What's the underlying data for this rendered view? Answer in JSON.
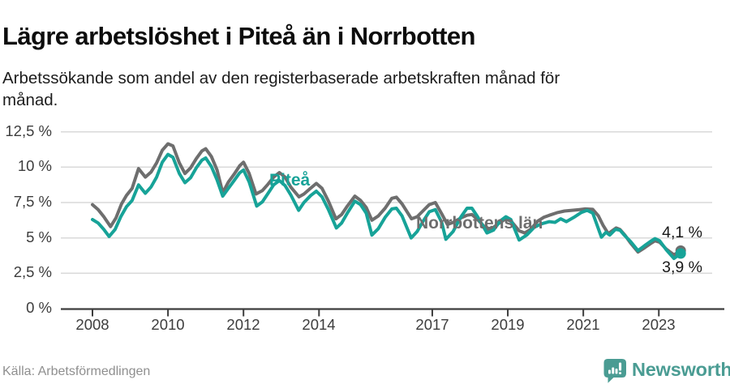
{
  "title": "Lägre arbetslöshet i Piteå än i Norrbotten",
  "subtitle": "Arbetssökande som andel av den registerbaserade arbetskraften månad för månad.",
  "source": "Källa: Arbetsförmedlingen",
  "brand": {
    "name": "Newsworthy",
    "color": "#4a9c93"
  },
  "chart_data": {
    "type": "line",
    "unit": "%",
    "grid": true,
    "x_axis": {
      "ticks": [
        2008,
        2010,
        2012,
        2014,
        2017,
        2019,
        2021,
        2023
      ],
      "range": [
        2008.0,
        2023.75
      ]
    },
    "y_axis": {
      "ticks": [
        0,
        2.5,
        5,
        7.5,
        10,
        12.5
      ],
      "tick_labels": [
        "0 %",
        "2,5 %",
        "5 %",
        "7,5 %",
        "10 %",
        "12,5 %"
      ],
      "range": [
        0,
        12.5
      ]
    },
    "series": [
      {
        "name": "Norrbottens län",
        "color": "#6e6e6e",
        "end_label": "4,1 %",
        "end_value": 4.1,
        "points": [
          [
            2008.0,
            7.35
          ],
          [
            2008.15,
            7.0
          ],
          [
            2008.3,
            6.5
          ],
          [
            2008.48,
            5.8
          ],
          [
            2008.62,
            6.4
          ],
          [
            2008.77,
            7.4
          ],
          [
            2008.9,
            8.0
          ],
          [
            2009.05,
            8.5
          ],
          [
            2009.22,
            9.9
          ],
          [
            2009.4,
            9.3
          ],
          [
            2009.55,
            9.65
          ],
          [
            2009.7,
            10.3
          ],
          [
            2009.85,
            11.2
          ],
          [
            2010.0,
            11.65
          ],
          [
            2010.13,
            11.5
          ],
          [
            2010.3,
            10.3
          ],
          [
            2010.45,
            9.55
          ],
          [
            2010.6,
            9.95
          ],
          [
            2010.75,
            10.6
          ],
          [
            2010.9,
            11.15
          ],
          [
            2011.0,
            11.3
          ],
          [
            2011.15,
            10.75
          ],
          [
            2011.3,
            9.8
          ],
          [
            2011.45,
            8.2
          ],
          [
            2011.6,
            8.95
          ],
          [
            2011.75,
            9.5
          ],
          [
            2011.9,
            10.1
          ],
          [
            2012.0,
            10.35
          ],
          [
            2012.15,
            9.55
          ],
          [
            2012.33,
            8.1
          ],
          [
            2012.5,
            8.35
          ],
          [
            2012.65,
            8.8
          ],
          [
            2012.8,
            9.3
          ],
          [
            2012.95,
            9.62
          ],
          [
            2013.1,
            9.3
          ],
          [
            2013.25,
            8.6
          ],
          [
            2013.47,
            7.9
          ],
          [
            2013.6,
            8.1
          ],
          [
            2013.75,
            8.45
          ],
          [
            2013.93,
            8.85
          ],
          [
            2014.08,
            8.5
          ],
          [
            2014.25,
            7.6
          ],
          [
            2014.45,
            6.35
          ],
          [
            2014.6,
            6.65
          ],
          [
            2014.75,
            7.25
          ],
          [
            2014.95,
            7.95
          ],
          [
            2015.1,
            7.65
          ],
          [
            2015.25,
            7.15
          ],
          [
            2015.4,
            6.25
          ],
          [
            2015.57,
            6.55
          ],
          [
            2015.75,
            7.1
          ],
          [
            2015.93,
            7.8
          ],
          [
            2016.05,
            7.88
          ],
          [
            2016.2,
            7.4
          ],
          [
            2016.45,
            6.35
          ],
          [
            2016.6,
            6.5
          ],
          [
            2016.75,
            6.9
          ],
          [
            2016.92,
            7.35
          ],
          [
            2017.08,
            7.5
          ],
          [
            2017.25,
            6.7
          ],
          [
            2017.4,
            5.95
          ],
          [
            2017.55,
            6.1
          ],
          [
            2017.75,
            6.4
          ],
          [
            2017.92,
            6.6
          ],
          [
            2018.05,
            6.65
          ],
          [
            2018.2,
            6.3
          ],
          [
            2018.45,
            5.6
          ],
          [
            2018.62,
            5.75
          ],
          [
            2018.8,
            6.1
          ],
          [
            2018.95,
            6.35
          ],
          [
            2019.1,
            6.15
          ],
          [
            2019.3,
            5.5
          ],
          [
            2019.45,
            5.35
          ],
          [
            2019.6,
            5.6
          ],
          [
            2019.8,
            6.2
          ],
          [
            2019.95,
            6.45
          ],
          [
            2020.1,
            6.6
          ],
          [
            2020.3,
            6.78
          ],
          [
            2020.5,
            6.9
          ],
          [
            2020.7,
            6.95
          ],
          [
            2020.9,
            7.0
          ],
          [
            2021.05,
            7.05
          ],
          [
            2021.25,
            7.02
          ],
          [
            2021.4,
            6.55
          ],
          [
            2021.52,
            5.9
          ],
          [
            2021.66,
            5.3
          ],
          [
            2021.87,
            5.7
          ],
          [
            2021.97,
            5.6
          ],
          [
            2022.1,
            5.2
          ],
          [
            2022.25,
            4.65
          ],
          [
            2022.45,
            4.0
          ],
          [
            2022.62,
            4.3
          ],
          [
            2022.78,
            4.6
          ],
          [
            2022.9,
            4.8
          ],
          [
            2023.02,
            4.7
          ],
          [
            2023.2,
            4.2
          ],
          [
            2023.4,
            3.8
          ],
          [
            2023.58,
            4.1
          ]
        ]
      },
      {
        "name": "Piteå",
        "color": "#17a398",
        "end_label": "3,9 %",
        "end_value": 3.9,
        "points": [
          [
            2008.0,
            6.3
          ],
          [
            2008.15,
            6.05
          ],
          [
            2008.3,
            5.6
          ],
          [
            2008.44,
            5.1
          ],
          [
            2008.6,
            5.6
          ],
          [
            2008.75,
            6.5
          ],
          [
            2008.9,
            7.2
          ],
          [
            2009.05,
            7.65
          ],
          [
            2009.22,
            8.75
          ],
          [
            2009.4,
            8.15
          ],
          [
            2009.55,
            8.6
          ],
          [
            2009.7,
            9.3
          ],
          [
            2009.85,
            10.35
          ],
          [
            2010.0,
            10.9
          ],
          [
            2010.13,
            10.7
          ],
          [
            2010.3,
            9.55
          ],
          [
            2010.45,
            8.9
          ],
          [
            2010.6,
            9.25
          ],
          [
            2010.75,
            9.95
          ],
          [
            2010.9,
            10.5
          ],
          [
            2011.0,
            10.65
          ],
          [
            2011.15,
            10.05
          ],
          [
            2011.3,
            9.1
          ],
          [
            2011.45,
            7.95
          ],
          [
            2011.6,
            8.5
          ],
          [
            2011.75,
            9.05
          ],
          [
            2011.9,
            9.6
          ],
          [
            2012.0,
            9.8
          ],
          [
            2012.15,
            8.95
          ],
          [
            2012.35,
            7.25
          ],
          [
            2012.5,
            7.55
          ],
          [
            2012.65,
            8.15
          ],
          [
            2012.8,
            8.75
          ],
          [
            2012.95,
            9.05
          ],
          [
            2013.1,
            8.7
          ],
          [
            2013.25,
            8.05
          ],
          [
            2013.46,
            6.95
          ],
          [
            2013.6,
            7.5
          ],
          [
            2013.78,
            8.0
          ],
          [
            2013.93,
            8.3
          ],
          [
            2014.08,
            7.9
          ],
          [
            2014.25,
            7.0
          ],
          [
            2014.46,
            5.7
          ],
          [
            2014.6,
            6.05
          ],
          [
            2014.75,
            6.75
          ],
          [
            2014.95,
            7.6
          ],
          [
            2015.1,
            7.35
          ],
          [
            2015.25,
            6.75
          ],
          [
            2015.4,
            5.2
          ],
          [
            2015.57,
            5.65
          ],
          [
            2015.75,
            6.45
          ],
          [
            2015.93,
            7.05
          ],
          [
            2016.05,
            7.1
          ],
          [
            2016.2,
            6.55
          ],
          [
            2016.44,
            5.0
          ],
          [
            2016.6,
            5.45
          ],
          [
            2016.75,
            6.15
          ],
          [
            2016.92,
            6.85
          ],
          [
            2017.08,
            7.0
          ],
          [
            2017.25,
            6.1
          ],
          [
            2017.36,
            4.9
          ],
          [
            2017.55,
            5.45
          ],
          [
            2017.75,
            6.45
          ],
          [
            2017.92,
            7.1
          ],
          [
            2018.05,
            7.1
          ],
          [
            2018.2,
            6.5
          ],
          [
            2018.45,
            5.35
          ],
          [
            2018.62,
            5.55
          ],
          [
            2018.8,
            6.2
          ],
          [
            2018.95,
            6.5
          ],
          [
            2019.08,
            6.3
          ],
          [
            2019.3,
            4.85
          ],
          [
            2019.5,
            5.2
          ],
          [
            2019.7,
            5.75
          ],
          [
            2019.9,
            6.0
          ],
          [
            2020.1,
            6.15
          ],
          [
            2020.25,
            6.1
          ],
          [
            2020.4,
            6.35
          ],
          [
            2020.55,
            6.15
          ],
          [
            2020.75,
            6.45
          ],
          [
            2020.95,
            6.8
          ],
          [
            2021.1,
            6.95
          ],
          [
            2021.25,
            6.75
          ],
          [
            2021.48,
            5.05
          ],
          [
            2021.6,
            5.4
          ],
          [
            2021.7,
            5.2
          ],
          [
            2021.85,
            5.6
          ],
          [
            2021.97,
            5.55
          ],
          [
            2022.1,
            5.15
          ],
          [
            2022.25,
            4.75
          ],
          [
            2022.45,
            4.1
          ],
          [
            2022.62,
            4.45
          ],
          [
            2022.78,
            4.75
          ],
          [
            2022.9,
            4.95
          ],
          [
            2023.02,
            4.8
          ],
          [
            2023.2,
            4.15
          ],
          [
            2023.4,
            3.55
          ],
          [
            2023.58,
            3.9
          ]
        ]
      }
    ]
  }
}
